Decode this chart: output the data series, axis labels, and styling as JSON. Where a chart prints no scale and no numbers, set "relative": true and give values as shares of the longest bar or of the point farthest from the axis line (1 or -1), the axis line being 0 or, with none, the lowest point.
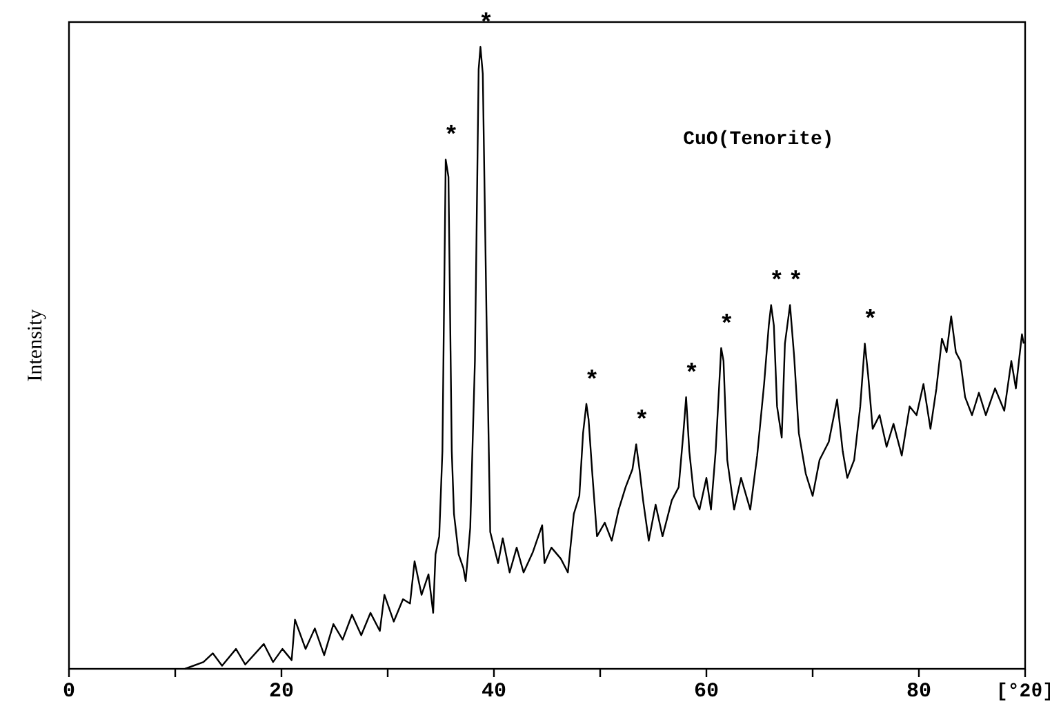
{
  "chart_data": {
    "type": "line",
    "title": "CuO(Tenorite)",
    "ylabel": "Intensity",
    "xlabel": "[°2θ]",
    "relative": true,
    "color": "#000000",
    "xlim": [
      0,
      90
    ],
    "xticks": [
      0,
      {
        "value": 10,
        "label": null
      },
      20,
      {
        "value": 30,
        "label": null
      },
      40,
      {
        "value": 50,
        "label": null
      },
      60,
      {
        "value": 70,
        "label": null
      },
      80,
      {
        "value": 90,
        "label": null
      }
    ],
    "x": [
      10.92,
      12.66,
      13.54,
      14.41,
      15.72,
      16.59,
      18.34,
      19.21,
      20.09,
      20.96,
      21.27,
      22.27,
      23.14,
      24.02,
      24.89,
      25.76,
      26.64,
      27.51,
      28.38,
      29.26,
      29.69,
      30.57,
      31.44,
      32.1,
      32.53,
      33.19,
      33.84,
      34.28,
      34.5,
      34.85,
      35.15,
      35.46,
      35.72,
      36.03,
      36.24,
      36.68,
      37.12,
      37.34,
      37.77,
      38.21,
      38.56,
      38.73,
      38.95,
      39.3,
      39.65,
      39.96,
      40.39,
      40.83,
      41.48,
      42.14,
      42.79,
      43.67,
      44.54,
      44.76,
      45.41,
      46.3,
      46.96,
      47.52,
      48.04,
      48.39,
      48.7,
      48.91,
      49.26,
      49.7,
      50.43,
      51.09,
      51.74,
      52.39,
      53.04,
      53.39,
      53.7,
      54.04,
      54.57,
      55.22,
      55.87,
      56.74,
      57.39,
      57.83,
      58.09,
      58.39,
      58.83,
      59.35,
      60.0,
      60.43,
      60.87,
      61.39,
      61.61,
      61.96,
      62.61,
      63.26,
      64.13,
      64.78,
      65.43,
      65.87,
      66.09,
      66.35,
      66.65,
      67.09,
      67.39,
      67.87,
      68.26,
      68.7,
      69.35,
      70.0,
      70.65,
      71.52,
      72.3,
      72.83,
      73.26,
      73.91,
      74.48,
      74.91,
      75.22,
      75.65,
      76.3,
      76.96,
      77.61,
      78.39,
      79.13,
      79.78,
      80.43,
      81.09,
      81.65,
      82.17,
      82.61,
      83.04,
      83.48,
      83.91,
      84.35,
      85.0,
      85.65,
      86.3,
      87.17,
      88.04,
      88.7,
      89.13,
      89.7,
      89.87
    ],
    "values": [
      0,
      0.011,
      0.025,
      0.005,
      0.032,
      0.007,
      0.04,
      0.011,
      0.032,
      0.014,
      0.079,
      0.032,
      0.065,
      0.022,
      0.072,
      0.047,
      0.087,
      0.054,
      0.09,
      0.061,
      0.119,
      0.076,
      0.112,
      0.105,
      0.173,
      0.119,
      0.152,
      0.09,
      0.184,
      0.213,
      0.35,
      0.819,
      0.791,
      0.35,
      0.249,
      0.184,
      0.162,
      0.141,
      0.227,
      0.495,
      0.964,
      1.0,
      0.957,
      0.567,
      0.22,
      0.199,
      0.17,
      0.21,
      0.155,
      0.195,
      0.155,
      0.188,
      0.231,
      0.17,
      0.195,
      0.177,
      0.155,
      0.249,
      0.278,
      0.379,
      0.426,
      0.401,
      0.314,
      0.213,
      0.235,
      0.206,
      0.256,
      0.292,
      0.321,
      0.361,
      0.321,
      0.271,
      0.206,
      0.264,
      0.213,
      0.271,
      0.292,
      0.379,
      0.437,
      0.35,
      0.278,
      0.256,
      0.307,
      0.256,
      0.35,
      0.516,
      0.495,
      0.336,
      0.256,
      0.307,
      0.256,
      0.343,
      0.458,
      0.552,
      0.585,
      0.552,
      0.422,
      0.372,
      0.523,
      0.585,
      0.502,
      0.379,
      0.314,
      0.278,
      0.336,
      0.365,
      0.433,
      0.35,
      0.307,
      0.336,
      0.422,
      0.523,
      0.473,
      0.386,
      0.408,
      0.357,
      0.394,
      0.343,
      0.422,
      0.408,
      0.458,
      0.386,
      0.451,
      0.531,
      0.509,
      0.567,
      0.509,
      0.495,
      0.437,
      0.408,
      0.444,
      0.408,
      0.451,
      0.415,
      0.495,
      0.451,
      0.538,
      0.523
    ],
    "annotations": [
      {
        "text": "*",
        "x": 35.46,
        "y": 0.819
      },
      {
        "text": "*",
        "x": 38.73,
        "y": 1.0
      },
      {
        "text": "*",
        "x": 48.7,
        "y": 0.426
      },
      {
        "text": "*",
        "x": 53.39,
        "y": 0.361
      },
      {
        "text": "*",
        "x": 58.09,
        "y": 0.437
      },
      {
        "text": "*",
        "x": 61.39,
        "y": 0.516
      },
      {
        "text": "*",
        "x": 66.09,
        "y": 0.585
      },
      {
        "text": "*",
        "x": 67.87,
        "y": 0.585
      },
      {
        "text": "*",
        "x": 74.91,
        "y": 0.523
      }
    ]
  }
}
